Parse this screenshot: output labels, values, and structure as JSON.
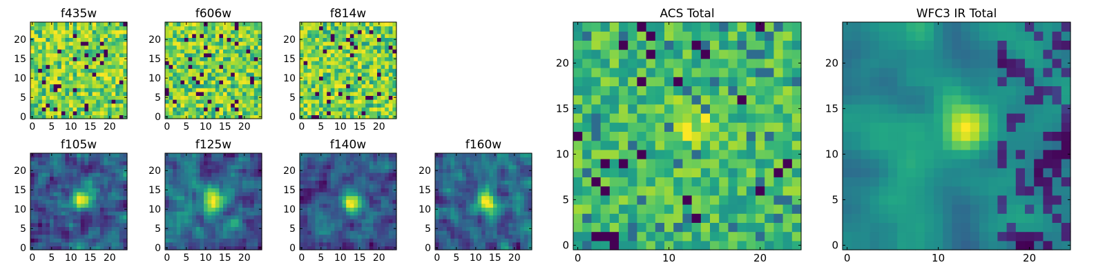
{
  "chart_data": [
    {
      "type": "heatmap",
      "title": "f435w",
      "colormap": "viridis",
      "grid_size": 25,
      "xlim": [
        0,
        24
      ],
      "ylim": [
        0,
        24
      ],
      "xticks": [
        0,
        5,
        10,
        15,
        20
      ],
      "yticks": [
        0,
        5,
        10,
        15,
        20
      ],
      "structure": "noise",
      "seed": 11
    },
    {
      "type": "heatmap",
      "title": "f606w",
      "colormap": "viridis",
      "grid_size": 25,
      "xlim": [
        0,
        24
      ],
      "ylim": [
        0,
        24
      ],
      "xticks": [
        0,
        5,
        10,
        15,
        20
      ],
      "yticks": [
        0,
        5,
        10,
        15,
        20
      ],
      "structure": "noise",
      "seed": 23
    },
    {
      "type": "heatmap",
      "title": "f814w",
      "colormap": "viridis",
      "grid_size": 25,
      "xlim": [
        0,
        24
      ],
      "ylim": [
        0,
        24
      ],
      "xticks": [
        0,
        5,
        10,
        15,
        20
      ],
      "yticks": [
        0,
        5,
        10,
        15,
        20
      ],
      "structure": "noise",
      "seed": 37
    },
    {
      "type": "heatmap",
      "title": "f105w",
      "colormap": "viridis",
      "grid_size": 25,
      "xlim": [
        0,
        24
      ],
      "ylim": [
        0,
        24
      ],
      "xticks": [
        0,
        5,
        10,
        15,
        20
      ],
      "yticks": [
        0,
        5,
        10,
        15,
        20
      ],
      "structure": "source",
      "source_center": [
        13,
        13
      ],
      "seed": 41
    },
    {
      "type": "heatmap",
      "title": "f125w",
      "colormap": "viridis",
      "grid_size": 25,
      "xlim": [
        0,
        24
      ],
      "ylim": [
        0,
        24
      ],
      "xticks": [
        0,
        5,
        10,
        15,
        20
      ],
      "yticks": [
        0,
        5,
        10,
        15,
        20
      ],
      "structure": "source",
      "source_center": [
        12,
        12
      ],
      "seed": 53
    },
    {
      "type": "heatmap",
      "title": "f140w",
      "colormap": "viridis",
      "grid_size": 25,
      "xlim": [
        0,
        24
      ],
      "ylim": [
        0,
        24
      ],
      "xticks": [
        0,
        5,
        10,
        15,
        20
      ],
      "yticks": [
        0,
        5,
        10,
        15,
        20
      ],
      "structure": "source",
      "source_center": [
        13,
        12
      ],
      "seed": 67
    },
    {
      "type": "heatmap",
      "title": "f160w",
      "colormap": "viridis",
      "grid_size": 25,
      "xlim": [
        0,
        24
      ],
      "ylim": [
        0,
        24
      ],
      "xticks": [
        0,
        5,
        10,
        15,
        20
      ],
      "yticks": [
        0,
        5,
        10,
        15,
        20
      ],
      "structure": "source",
      "source_center": [
        13,
        12
      ],
      "seed": 79
    },
    {
      "type": "heatmap",
      "title": "ACS Total",
      "colormap": "viridis",
      "grid_size": 25,
      "xlim": [
        0,
        24
      ],
      "ylim": [
        0,
        24
      ],
      "xticks": [
        0,
        10,
        20
      ],
      "yticks": [
        0,
        5,
        10,
        15,
        20
      ],
      "structure": "noise_bright",
      "source_center": [
        13,
        13
      ],
      "seed": 97
    },
    {
      "type": "heatmap",
      "title": "WFC3 IR Total",
      "colormap": "viridis",
      "grid_size": 25,
      "xlim": [
        0,
        24
      ],
      "ylim": [
        0,
        24
      ],
      "xticks": [
        0,
        10,
        20
      ],
      "yticks": [
        0,
        5,
        10,
        15,
        20
      ],
      "structure": "source_smooth",
      "source_center": [
        13,
        13
      ],
      "seed": 101
    }
  ]
}
